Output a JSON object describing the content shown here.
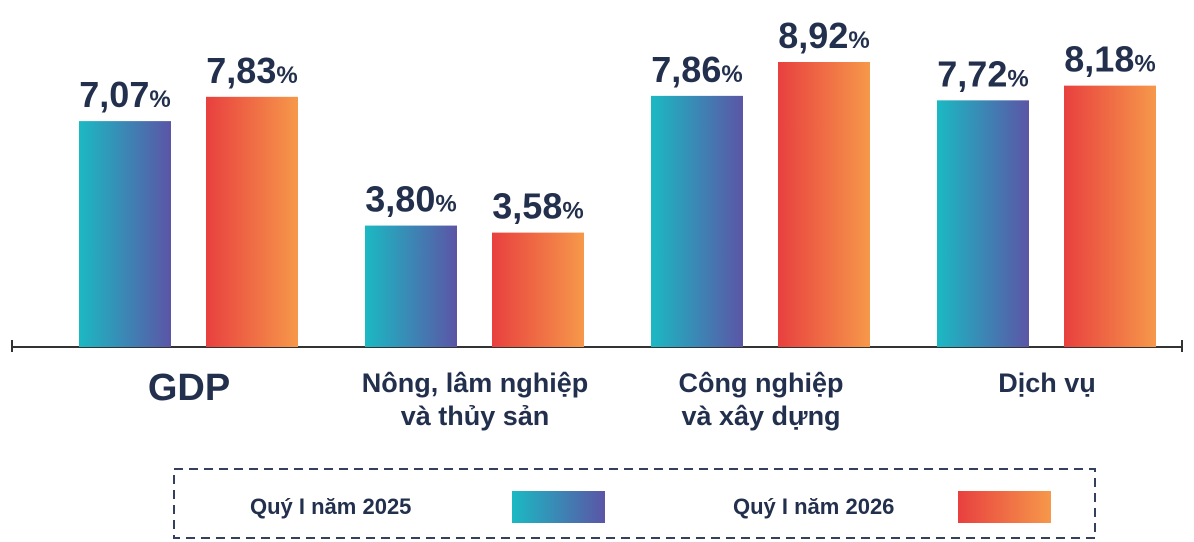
{
  "chart_data": {
    "type": "bar",
    "categories": [
      "GDP",
      "Nông, lâm nghiệp\nvà thủy sản",
      "Công nghiệp\nvà xây dựng",
      "Dịch vụ"
    ],
    "series": [
      {
        "name": "Quý I năm 2025",
        "color": [
          "#1bb9c3",
          "#5b55a6"
        ],
        "values": [
          7.07,
          3.8,
          7.86,
          7.72
        ],
        "value_labels": [
          "7,07%",
          "3,80%",
          "7,86%",
          "7,72%"
        ]
      },
      {
        "name": "Quý I năm 2026",
        "color": [
          "#e8403f",
          "#f6984a"
        ],
        "values": [
          7.83,
          3.58,
          8.92,
          8.18
        ],
        "value_labels": [
          "7,83%",
          "3,58%",
          "8,92%",
          "8,18%"
        ]
      }
    ],
    "legend": "bottom"
  }
}
